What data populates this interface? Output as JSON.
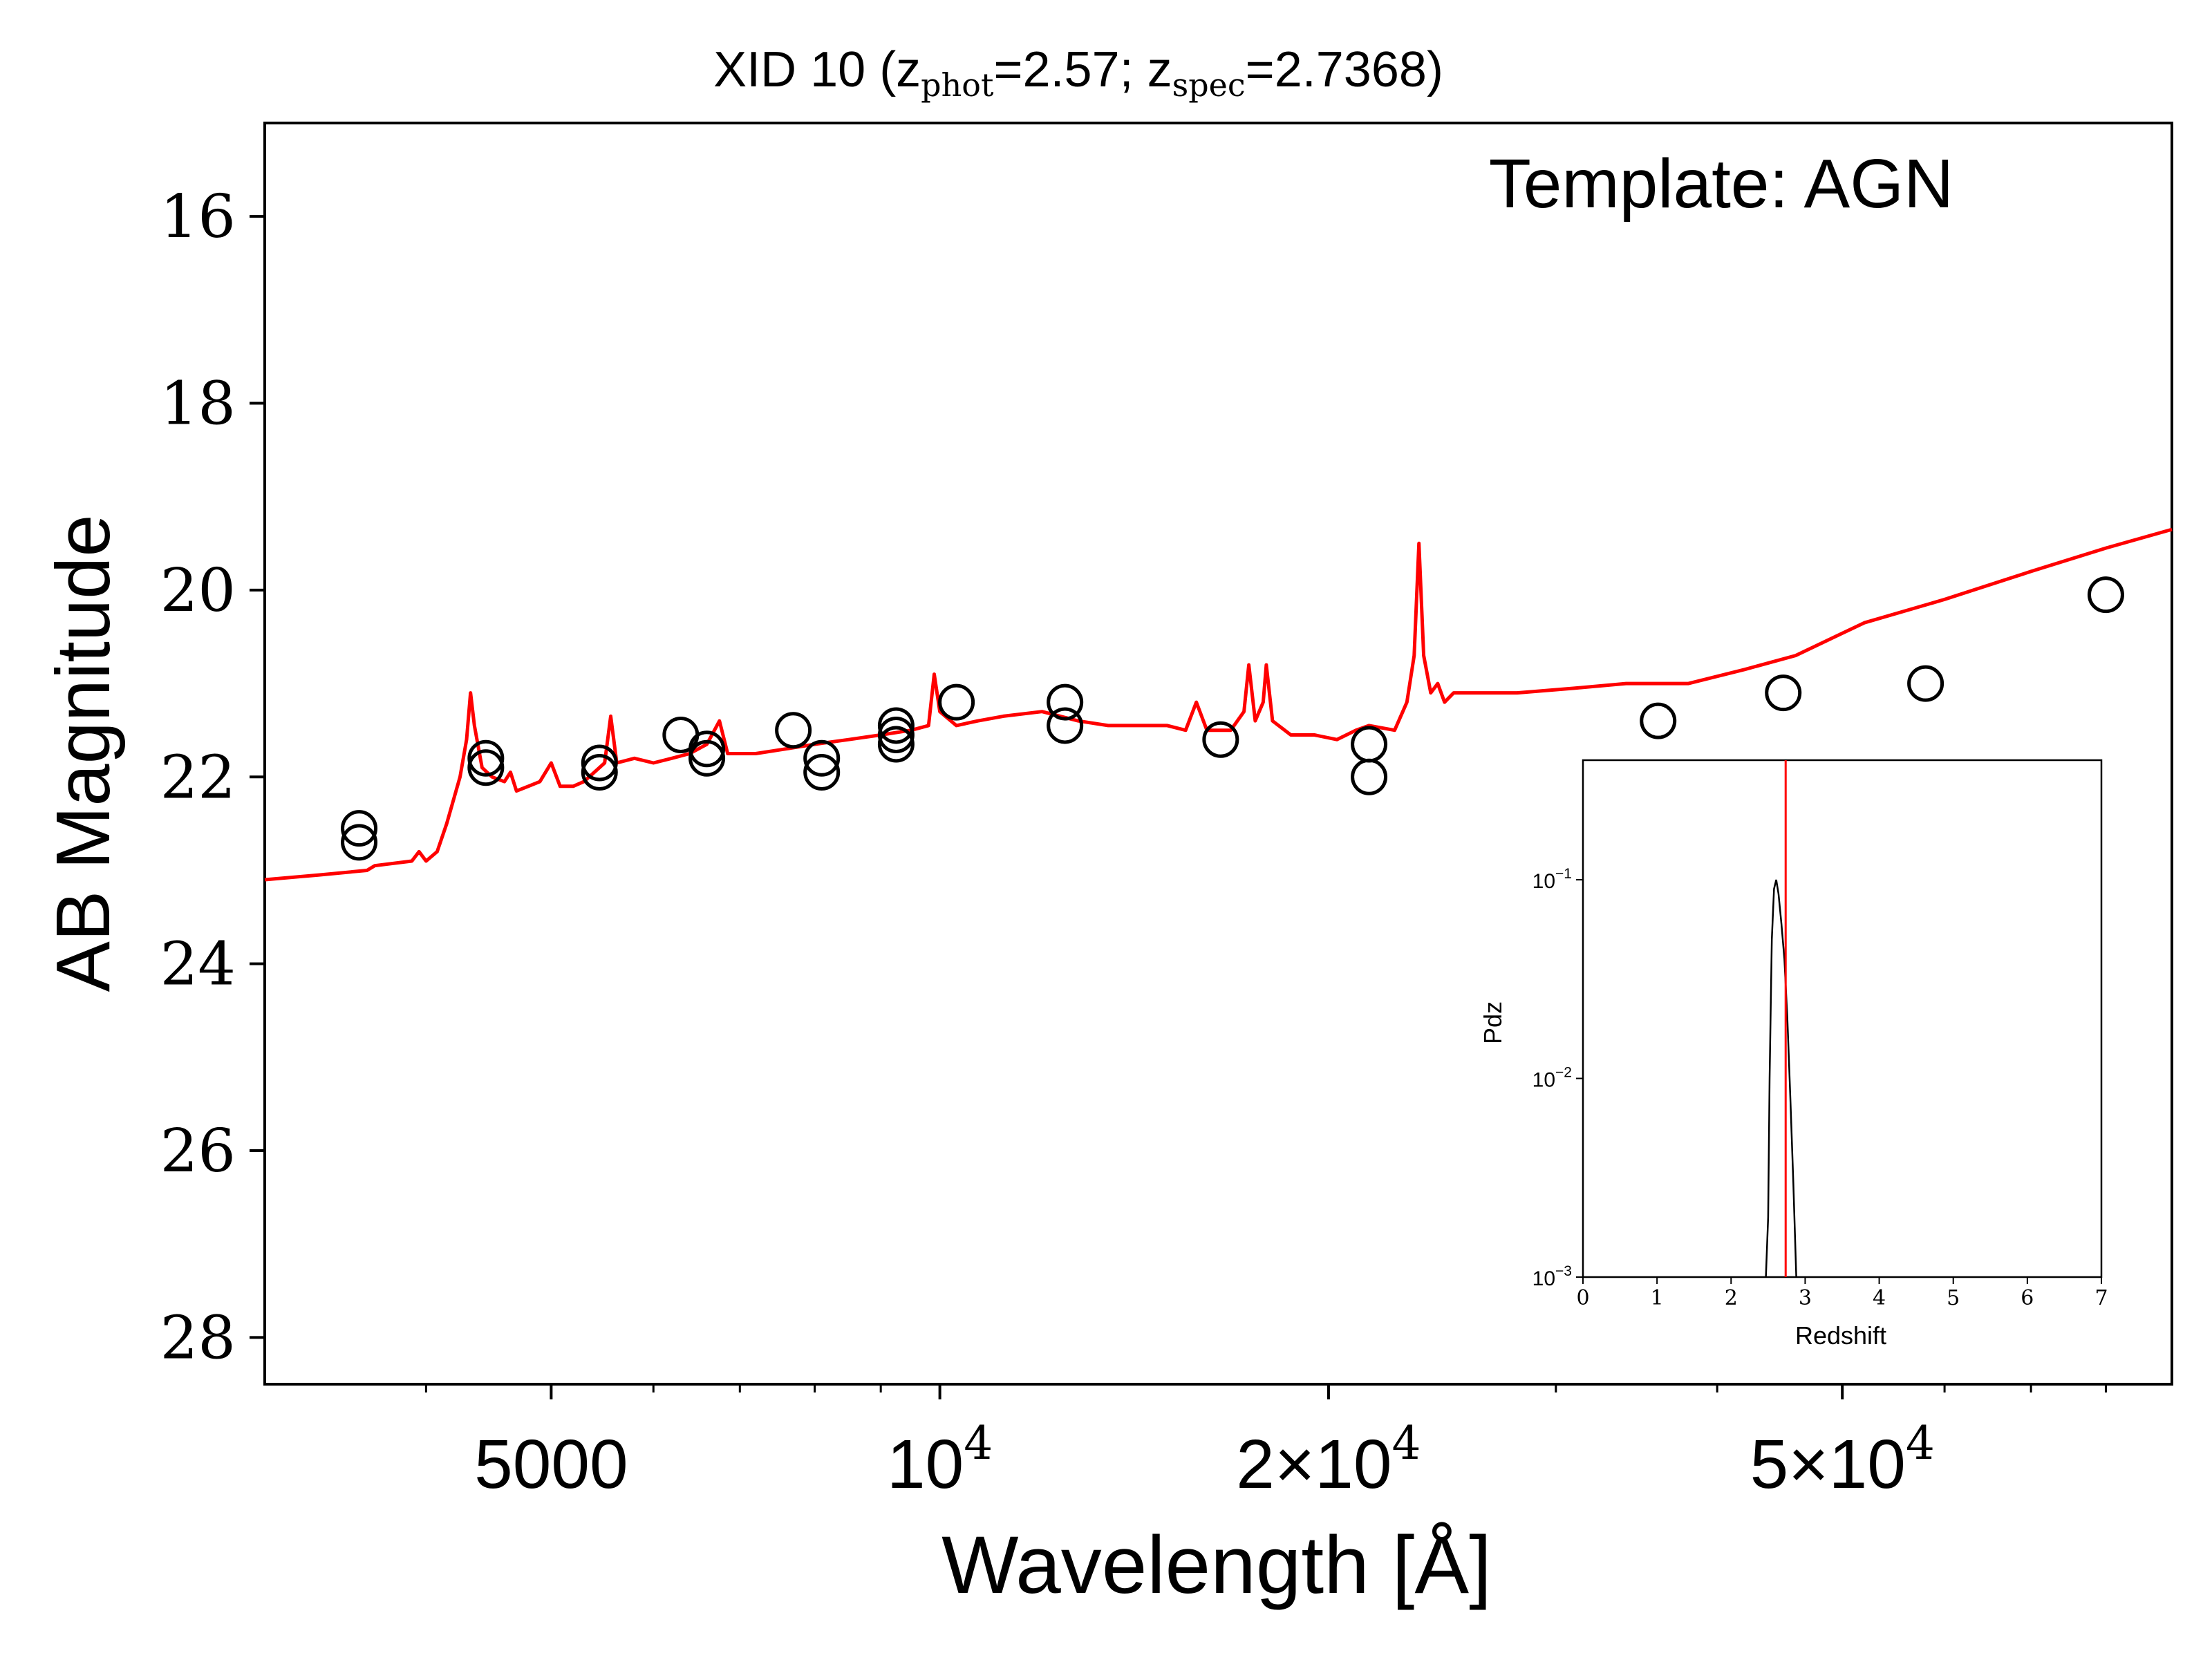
{
  "chart_data": [
    {
      "type": "scatter",
      "title": "XID 10 (zphot=2.57; zspec=2.7368)",
      "title_parts": {
        "prefix": "XID 10 (z",
        "sub1": "phot",
        "mid": "=2.57; z",
        "sub2": "spec",
        "suffix": "=2.7368)"
      },
      "xlabel": "Wavelength [Å]",
      "ylabel": "AB Magnitude",
      "annotation": "Template: AGN",
      "x_scale": "log",
      "xlim": [
        3000,
        90000
      ],
      "ylim": [
        28.5,
        15.0
      ],
      "y_inverted": true,
      "x_tick_labels": [
        {
          "value": 5000,
          "label": "5000"
        },
        {
          "value": 10000,
          "base": "10",
          "exp": "4"
        },
        {
          "value": 20000,
          "base": "2×10",
          "exp": "4"
        },
        {
          "value": 50000,
          "base": "5×10",
          "exp": "4"
        }
      ],
      "x_minor_ticks": [
        4000,
        6000,
        7000,
        8000,
        9000,
        30000,
        40000,
        60000,
        70000,
        80000
      ],
      "y_ticks": [
        16,
        18,
        20,
        22,
        24,
        26,
        28
      ],
      "grid": false,
      "series": [
        {
          "kind": "points",
          "marker": "open-circle",
          "color": "#000000",
          "points": [
            [
              3550,
              22.55
            ],
            [
              3550,
              22.7
            ],
            [
              4450,
              21.8
            ],
            [
              4450,
              21.9
            ],
            [
              5450,
              21.85
            ],
            [
              5450,
              21.95
            ],
            [
              6300,
              21.55
            ],
            [
              6600,
              21.7
            ],
            [
              6600,
              21.8
            ],
            [
              7700,
              21.5
            ],
            [
              8100,
              21.8
            ],
            [
              8100,
              21.95
            ],
            [
              9250,
              21.45
            ],
            [
              9250,
              21.55
            ],
            [
              9250,
              21.65
            ],
            [
              10300,
              21.2
            ],
            [
              12500,
              21.2
            ],
            [
              12500,
              21.45
            ],
            [
              16500,
              21.6
            ],
            [
              21500,
              21.65
            ],
            [
              21500,
              22.0
            ],
            [
              36000,
              21.4
            ],
            [
              45000,
              21.1
            ],
            [
              58000,
              21.0
            ],
            [
              80000,
              20.05
            ]
          ]
        },
        {
          "kind": "line",
          "color": "#ff0000",
          "points": [
            [
              3000,
              23.1
            ],
            [
              3300,
              23.05
            ],
            [
              3600,
              23.0
            ],
            [
              3650,
              22.95
            ],
            [
              3900,
              22.9
            ],
            [
              3950,
              22.8
            ],
            [
              4000,
              22.9
            ],
            [
              4080,
              22.8
            ],
            [
              4150,
              22.5
            ],
            [
              4250,
              22.0
            ],
            [
              4300,
              21.6
            ],
            [
              4330,
              21.1
            ],
            [
              4360,
              21.45
            ],
            [
              4420,
              21.9
            ],
            [
              4500,
              22.0
            ],
            [
              4600,
              22.05
            ],
            [
              4650,
              21.95
            ],
            [
              4700,
              22.15
            ],
            [
              4800,
              22.1
            ],
            [
              4900,
              22.05
            ],
            [
              5000,
              21.85
            ],
            [
              5080,
              22.1
            ],
            [
              5200,
              22.1
            ],
            [
              5300,
              22.05
            ],
            [
              5400,
              21.95
            ],
            [
              5500,
              21.85
            ],
            [
              5560,
              21.35
            ],
            [
              5620,
              21.85
            ],
            [
              5800,
              21.8
            ],
            [
              6000,
              21.85
            ],
            [
              6200,
              21.8
            ],
            [
              6400,
              21.75
            ],
            [
              6600,
              21.65
            ],
            [
              6750,
              21.4
            ],
            [
              6850,
              21.75
            ],
            [
              7200,
              21.75
            ],
            [
              7600,
              21.7
            ],
            [
              8000,
              21.65
            ],
            [
              8500,
              21.6
            ],
            [
              9000,
              21.55
            ],
            [
              9500,
              21.5
            ],
            [
              9800,
              21.45
            ],
            [
              9900,
              20.9
            ],
            [
              10000,
              21.3
            ],
            [
              10300,
              21.45
            ],
            [
              10700,
              21.4
            ],
            [
              11200,
              21.35
            ],
            [
              12000,
              21.3
            ],
            [
              12800,
              21.4
            ],
            [
              13500,
              21.45
            ],
            [
              14200,
              21.45
            ],
            [
              15000,
              21.45
            ],
            [
              15500,
              21.5
            ],
            [
              15800,
              21.2
            ],
            [
              16100,
              21.5
            ],
            [
              16800,
              21.5
            ],
            [
              17200,
              21.3
            ],
            [
              17350,
              20.8
            ],
            [
              17550,
              21.4
            ],
            [
              17800,
              21.2
            ],
            [
              17900,
              20.8
            ],
            [
              18100,
              21.4
            ],
            [
              18700,
              21.55
            ],
            [
              19500,
              21.55
            ],
            [
              20300,
              21.6
            ],
            [
              21000,
              21.5
            ],
            [
              21500,
              21.45
            ],
            [
              22500,
              21.5
            ],
            [
              23000,
              21.2
            ],
            [
              23300,
              20.7
            ],
            [
              23500,
              19.5
            ],
            [
              23700,
              20.7
            ],
            [
              24000,
              21.1
            ],
            [
              24300,
              21.0
            ],
            [
              24600,
              21.2
            ],
            [
              25000,
              21.1
            ],
            [
              26000,
              21.1
            ],
            [
              28000,
              21.1
            ],
            [
              31000,
              21.05
            ],
            [
              34000,
              21.0
            ],
            [
              38000,
              21.0
            ],
            [
              42000,
              20.85
            ],
            [
              46000,
              20.7
            ],
            [
              52000,
              20.35
            ],
            [
              60000,
              20.1
            ],
            [
              70000,
              19.8
            ],
            [
              80000,
              19.55
            ],
            [
              90000,
              19.35
            ]
          ]
        }
      ]
    },
    {
      "type": "line",
      "xlabel": "Redshift",
      "ylabel": "Pdz",
      "y_scale": "log",
      "xlim": [
        0,
        7
      ],
      "ylim": [
        0.001,
        0.4
      ],
      "x_ticks": [
        0,
        1,
        2,
        3,
        4,
        5,
        6,
        7
      ],
      "y_tick_labels": [
        {
          "value": 0.1,
          "base": "10",
          "exp": "−1"
        },
        {
          "value": 0.01,
          "base": "10",
          "exp": "−2"
        },
        {
          "value": 0.001,
          "base": "10",
          "exp": "−3"
        }
      ],
      "grid": false,
      "series": [
        {
          "kind": "line",
          "color": "#000000",
          "points": [
            [
              2.47,
              0.001
            ],
            [
              2.5,
              0.002
            ],
            [
              2.52,
              0.01
            ],
            [
              2.55,
              0.05
            ],
            [
              2.58,
              0.09
            ],
            [
              2.61,
              0.1
            ],
            [
              2.64,
              0.085
            ],
            [
              2.68,
              0.06
            ],
            [
              2.72,
              0.04
            ],
            [
              2.76,
              0.02
            ],
            [
              2.8,
              0.008
            ],
            [
              2.84,
              0.003
            ],
            [
              2.88,
              0.001
            ]
          ]
        }
      ],
      "vline": {
        "x": 2.7368,
        "color": "#ff0000"
      }
    }
  ]
}
